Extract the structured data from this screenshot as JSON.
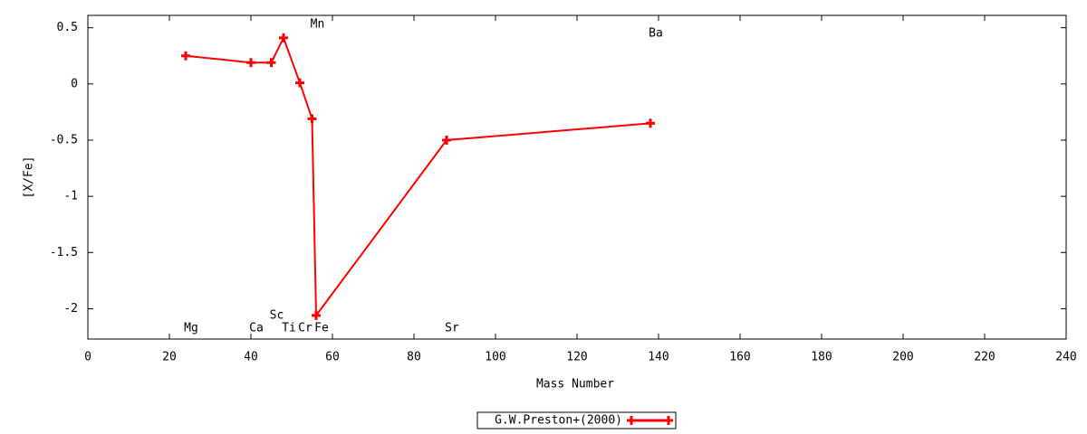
{
  "chart_data": {
    "type": "line",
    "x_label": "Mass Number",
    "y_label": "[X/Fe]",
    "x": [
      24,
      40,
      45,
      48,
      52,
      55,
      56,
      88,
      138
    ],
    "point_labels": [
      "Mg",
      "Ca",
      "Sc",
      "Ti",
      "Cr",
      "Mn",
      "Fe",
      "Sr",
      "Ba"
    ],
    "series": [
      {
        "name": "G.W.Preston+(2000)",
        "color": "#ff0000",
        "values": [
          0.25,
          0.19,
          0.19,
          0.41,
          0.01,
          -0.31,
          -2.06,
          -0.5,
          -0.35
        ]
      }
    ],
    "xlim": [
      0,
      240
    ],
    "xticks": [
      0,
      20,
      40,
      60,
      80,
      100,
      120,
      140,
      160,
      180,
      200,
      220,
      240
    ],
    "ylim": [
      -2.27,
      0.61
    ],
    "yticks": [
      -2,
      -1.5,
      -1,
      -0.5,
      0,
      0.5
    ],
    "legend": "bottom"
  }
}
